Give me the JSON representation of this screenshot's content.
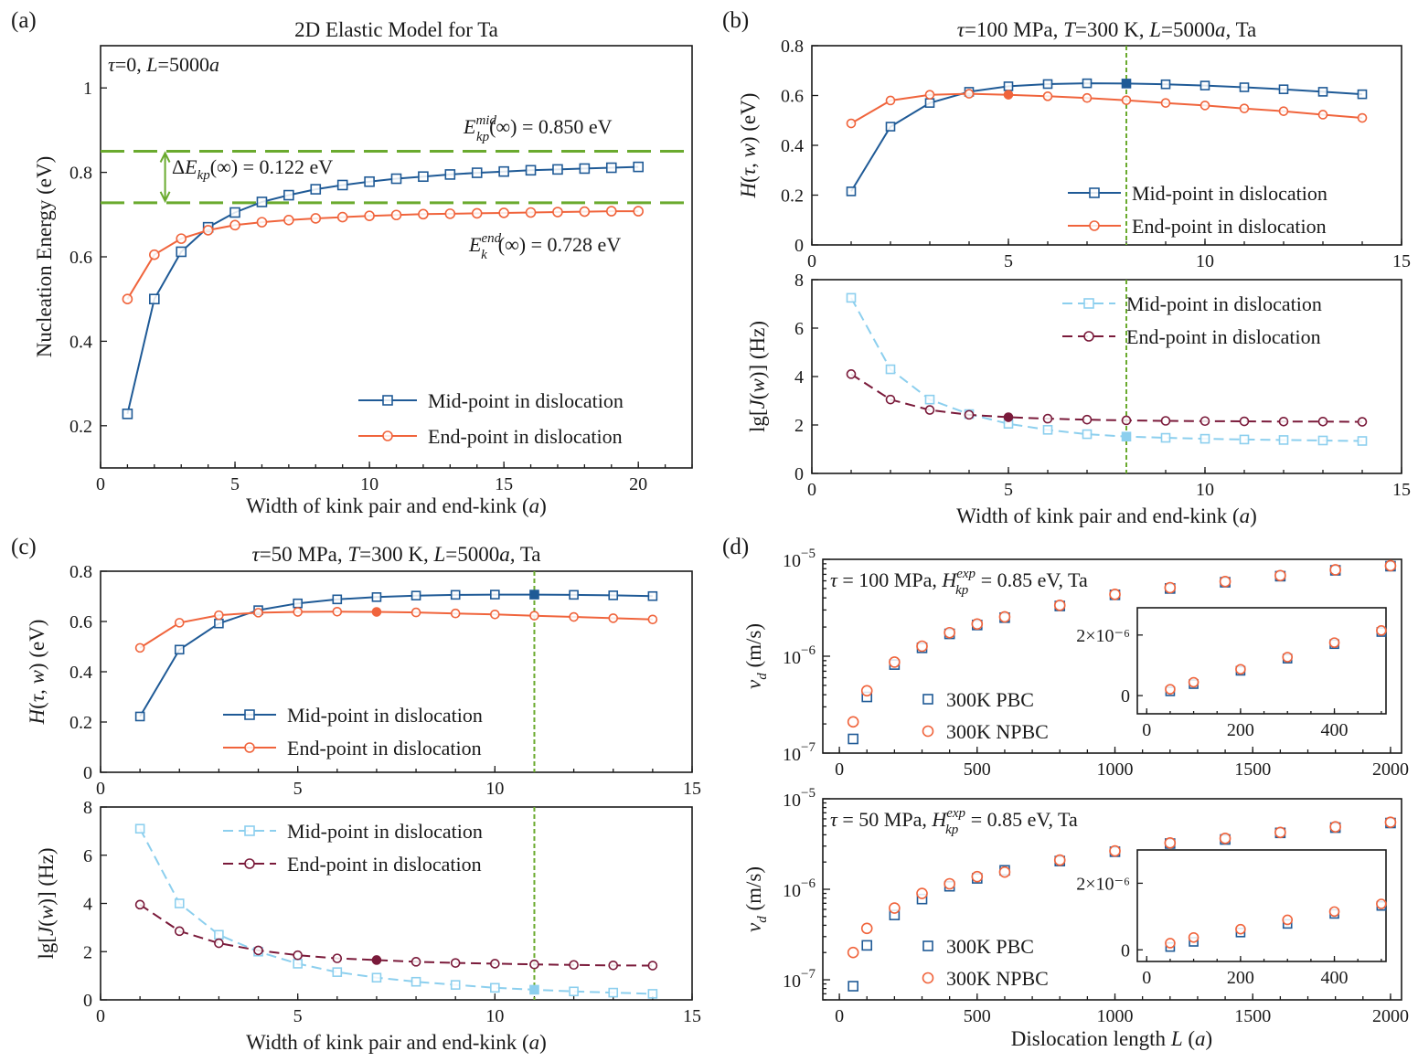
{
  "colors": {
    "mid": "#1f5a96",
    "end": "#f0643c",
    "mid_light": "#8ccfee",
    "end_dark": "#7a1a3a",
    "green": "#6aaa2e"
  },
  "chart_data": [
    {
      "id": "a",
      "type": "line",
      "panel_label": "(a)",
      "title": "2D Elastic Model for Ta",
      "xlabel": "Width of kink pair and end-kink (a)",
      "ylabel": "Nucleation Energy (eV)",
      "xlim": [
        0,
        22
      ],
      "ylim": [
        0.1,
        1.1
      ],
      "xticks": [
        "0",
        "5",
        "10",
        "15",
        "20"
      ],
      "yticks": [
        "0.2",
        "0.4",
        "0.6",
        "0.8",
        "1"
      ],
      "corner_text": "τ=0, L=5000a",
      "series": [
        {
          "name": "Mid-point in dislocation",
          "marker": "square",
          "x": [
            1,
            2,
            3,
            4,
            5,
            6,
            7,
            8,
            9,
            10,
            11,
            12,
            13,
            14,
            15,
            16,
            17,
            18,
            19,
            20
          ],
          "y": [
            0.228,
            0.5,
            0.612,
            0.67,
            0.705,
            0.73,
            0.746,
            0.76,
            0.77,
            0.778,
            0.785,
            0.79,
            0.795,
            0.799,
            0.802,
            0.805,
            0.807,
            0.809,
            0.811,
            0.813
          ]
        },
        {
          "name": "End-point in dislocation",
          "marker": "circle",
          "x": [
            1,
            2,
            3,
            4,
            5,
            6,
            7,
            8,
            9,
            10,
            11,
            12,
            13,
            14,
            15,
            16,
            17,
            18,
            19,
            20
          ],
          "y": [
            0.5,
            0.605,
            0.643,
            0.663,
            0.675,
            0.682,
            0.687,
            0.691,
            0.694,
            0.697,
            0.699,
            0.701,
            0.702,
            0.703,
            0.704,
            0.705,
            0.706,
            0.707,
            0.708,
            0.708
          ]
        }
      ],
      "hlines": [
        0.85,
        0.728
      ],
      "annotations": {
        "emid": "= 0.850 eV",
        "eend": "= 0.728 eV",
        "delta": "= 0.122 eV"
      }
    },
    {
      "id": "b_top",
      "type": "line",
      "panel_label": "(b)",
      "title": "τ=100 MPa, T=300 K, L=5000a, Ta",
      "ylabel": "H(τ,w) (eV)",
      "xlim": [
        0,
        15
      ],
      "ylim": [
        0,
        0.8
      ],
      "xticks": [
        "0",
        "5",
        "10",
        "15"
      ],
      "yticks": [
        "0",
        "0.2",
        "0.4",
        "0.6",
        "0.8"
      ],
      "vline": 8,
      "series": [
        {
          "name": "Mid-point in dislocation",
          "marker": "square",
          "filled_x": 8,
          "x": [
            1,
            2,
            3,
            4,
            5,
            6,
            7,
            8,
            9,
            10,
            11,
            12,
            13,
            14
          ],
          "y": [
            0.215,
            0.475,
            0.57,
            0.615,
            0.637,
            0.646,
            0.649,
            0.648,
            0.645,
            0.64,
            0.633,
            0.625,
            0.615,
            0.605
          ]
        },
        {
          "name": "End-point in dislocation",
          "marker": "circle",
          "filled_x": 5,
          "x": [
            1,
            2,
            3,
            4,
            5,
            6,
            7,
            8,
            9,
            10,
            11,
            12,
            13,
            14
          ],
          "y": [
            0.488,
            0.58,
            0.603,
            0.607,
            0.603,
            0.597,
            0.59,
            0.581,
            0.57,
            0.56,
            0.548,
            0.537,
            0.523,
            0.51
          ]
        }
      ]
    },
    {
      "id": "b_bot",
      "type": "line",
      "xlabel": "Width of kink pair and end-kink (a)",
      "ylabel": "lg[J(w)] (Hz)",
      "xlim": [
        0,
        15
      ],
      "ylim": [
        0,
        8
      ],
      "xticks": [
        "0",
        "5",
        "10",
        "15"
      ],
      "yticks": [
        "0",
        "2",
        "4",
        "6",
        "8"
      ],
      "vline": 8,
      "series": [
        {
          "name": "Mid-point in dislocation",
          "marker": "square",
          "dashed": true,
          "filled_x": 8,
          "x": [
            1,
            2,
            3,
            4,
            5,
            6,
            7,
            8,
            9,
            10,
            11,
            12,
            13,
            14
          ],
          "y": [
            7.25,
            4.3,
            3.05,
            2.45,
            2.05,
            1.8,
            1.62,
            1.52,
            1.47,
            1.43,
            1.4,
            1.38,
            1.36,
            1.34
          ]
        },
        {
          "name": "End-point in dislocation",
          "marker": "circle",
          "dashed": true,
          "filled_x": 5,
          "x": [
            1,
            2,
            3,
            4,
            5,
            6,
            7,
            8,
            9,
            10,
            11,
            12,
            13,
            14
          ],
          "y": [
            4.1,
            3.05,
            2.62,
            2.42,
            2.32,
            2.26,
            2.22,
            2.19,
            2.17,
            2.16,
            2.15,
            2.14,
            2.14,
            2.13
          ]
        }
      ]
    },
    {
      "id": "c_top",
      "type": "line",
      "panel_label": "(c)",
      "title": "τ=50 MPa, T=300 K, L=5000a, Ta",
      "ylabel": "H(τ,w) (eV)",
      "xlim": [
        0,
        15
      ],
      "ylim": [
        0,
        0.8
      ],
      "xticks": [
        "0",
        "5",
        "10",
        "15"
      ],
      "yticks": [
        "0",
        "0.2",
        "0.4",
        "0.6",
        "0.8"
      ],
      "vline": 11,
      "series": [
        {
          "name": "Mid-point in dislocation",
          "marker": "square",
          "filled_x": 11,
          "x": [
            1,
            2,
            3,
            4,
            5,
            6,
            7,
            8,
            9,
            10,
            11,
            12,
            13,
            14
          ],
          "y": [
            0.222,
            0.488,
            0.592,
            0.645,
            0.672,
            0.688,
            0.697,
            0.703,
            0.706,
            0.707,
            0.707,
            0.706,
            0.704,
            0.701
          ]
        },
        {
          "name": "End-point in dislocation",
          "marker": "circle",
          "filled_x": 7,
          "x": [
            1,
            2,
            3,
            4,
            5,
            6,
            7,
            8,
            9,
            10,
            11,
            12,
            13,
            14
          ],
          "y": [
            0.495,
            0.595,
            0.625,
            0.635,
            0.638,
            0.639,
            0.638,
            0.636,
            0.632,
            0.628,
            0.623,
            0.618,
            0.613,
            0.608
          ]
        }
      ]
    },
    {
      "id": "c_bot",
      "type": "line",
      "xlabel": "Width of kink pair and end-kink (a)",
      "ylabel": "lg[J(w)] (Hz)",
      "xlim": [
        0,
        15
      ],
      "ylim": [
        0,
        8
      ],
      "xticks": [
        "0",
        "5",
        "10",
        "15"
      ],
      "yticks": [
        "0",
        "2",
        "4",
        "6",
        "8"
      ],
      "vline": 11,
      "series": [
        {
          "name": "Mid-point in dislocation",
          "marker": "square",
          "dashed": true,
          "filled_x": 11,
          "x": [
            1,
            2,
            3,
            4,
            5,
            6,
            7,
            8,
            9,
            10,
            11,
            12,
            13,
            14
          ],
          "y": [
            7.1,
            4.0,
            2.7,
            2.0,
            1.5,
            1.15,
            0.92,
            0.75,
            0.62,
            0.5,
            0.42,
            0.35,
            0.3,
            0.25
          ]
        },
        {
          "name": "End-point in dislocation",
          "marker": "circle",
          "dashed": true,
          "filled_x": 7,
          "x": [
            1,
            2,
            3,
            4,
            5,
            6,
            7,
            8,
            9,
            10,
            11,
            12,
            13,
            14
          ],
          "y": [
            3.95,
            2.85,
            2.35,
            2.05,
            1.85,
            1.72,
            1.65,
            1.58,
            1.53,
            1.5,
            1.47,
            1.45,
            1.43,
            1.42
          ]
        }
      ]
    },
    {
      "id": "d_top",
      "type": "scatter",
      "panel_label": "(d)",
      "ylabel": "v_d (m/s)",
      "yscale": "log",
      "xlim": [
        -60,
        2040
      ],
      "ylim": [
        1e-07,
        1e-05
      ],
      "xticks": [
        "0",
        "500",
        "1000",
        "1500",
        "2000"
      ],
      "corner_text": "τ = 100 MPa,",
      "corner_text_tail": "= 0.85 eV, Ta",
      "series": [
        {
          "name": "300K PBC",
          "marker": "square",
          "x": [
            50,
            100,
            200,
            300,
            400,
            500,
            600,
            800,
            1000,
            1200,
            1400,
            1600,
            1800,
            2000
          ],
          "y": [
            1.4e-07,
            3.8e-07,
            8.2e-07,
            1.22e-06,
            1.7e-06,
            2.1e-06,
            2.5e-06,
            3.3e-06,
            4.3e-06,
            5e-06,
            5.8e-06,
            6.7e-06,
            7.7e-06,
            8.5e-06
          ]
        },
        {
          "name": "300K NPBC",
          "marker": "circle",
          "x": [
            50,
            100,
            200,
            300,
            400,
            500,
            600,
            800,
            1000,
            1200,
            1400,
            1600,
            1800,
            2000
          ],
          "y": [
            2.1e-07,
            4.4e-07,
            8.7e-07,
            1.27e-06,
            1.75e-06,
            2.15e-06,
            2.55e-06,
            3.35e-06,
            4.35e-06,
            5.1e-06,
            5.9e-06,
            6.8e-06,
            7.8e-06,
            8.6e-06
          ]
        }
      ],
      "inset": {
        "xlim": [
          -20,
          510
        ],
        "ylim": [
          -6e-07,
          2.9e-06
        ],
        "xticks": [
          "0",
          "200",
          "400"
        ],
        "yticks": [
          "0",
          "2×10⁻⁶"
        ],
        "series": [
          {
            "name": "300K PBC",
            "marker": "square",
            "x": [
              50,
              100,
              200,
              300,
              400,
              500
            ],
            "y": [
              1.4e-07,
              3.8e-07,
              8.2e-07,
              1.22e-06,
              1.7e-06,
              2.1e-06
            ]
          },
          {
            "name": "300K NPBC",
            "marker": "circle",
            "x": [
              50,
              100,
              200,
              300,
              400,
              500
            ],
            "y": [
              2.1e-07,
              4.4e-07,
              8.7e-07,
              1.27e-06,
              1.75e-06,
              2.15e-06
            ]
          }
        ]
      }
    },
    {
      "id": "d_bot",
      "type": "scatter",
      "xlabel": "Dislocation length L (a)",
      "ylabel": "v_d (m/s)",
      "yscale": "log",
      "xlim": [
        -60,
        2040
      ],
      "ylim": [
        6e-08,
        1e-05
      ],
      "xticks": [
        "0",
        "500",
        "1000",
        "1500",
        "2000"
      ],
      "corner_text": "τ = 50 MPa,",
      "corner_text_tail": "= 0.85 eV, Ta",
      "series": [
        {
          "name": "300K PBC",
          "marker": "square",
          "x": [
            50,
            100,
            200,
            300,
            400,
            500,
            600,
            800,
            1000,
            1200,
            1400,
            1600,
            1800,
            2000
          ],
          "y": [
            8.5e-08,
            2.4e-07,
            5.2e-07,
            7.8e-07,
            1.08e-06,
            1.32e-06,
            1.62e-06,
            2.05e-06,
            2.6e-06,
            3.2e-06,
            3.55e-06,
            4.2e-06,
            4.8e-06,
            5.4e-06
          ]
        },
        {
          "name": "300K NPBC",
          "marker": "circle",
          "x": [
            50,
            100,
            200,
            300,
            400,
            500,
            600,
            800,
            1000,
            1200,
            1400,
            1600,
            1800,
            2000
          ],
          "y": [
            2e-07,
            3.7e-07,
            6.2e-07,
            9e-07,
            1.15e-06,
            1.38e-06,
            1.55e-06,
            2.1e-06,
            2.65e-06,
            3.25e-06,
            3.65e-06,
            4.25e-06,
            4.9e-06,
            5.5e-06
          ]
        }
      ],
      "inset": {
        "xlim": [
          -20,
          510
        ],
        "ylim": [
          -3.5e-07,
          3e-06
        ],
        "xticks": [
          "0",
          "200",
          "400"
        ],
        "yticks": [
          "0",
          "2×10⁻⁶"
        ],
        "series": [
          {
            "name": "300K PBC",
            "marker": "square",
            "x": [
              50,
              100,
              200,
              300,
              400,
              500
            ],
            "y": [
              8.5e-08,
              2.4e-07,
              5.2e-07,
              7.8e-07,
              1.08e-06,
              1.32e-06
            ]
          },
          {
            "name": "300K NPBC",
            "marker": "circle",
            "x": [
              50,
              100,
              200,
              300,
              400,
              500
            ],
            "y": [
              2e-07,
              3.7e-07,
              6.2e-07,
              9e-07,
              1.15e-06,
              1.38e-06
            ]
          }
        ]
      }
    }
  ]
}
